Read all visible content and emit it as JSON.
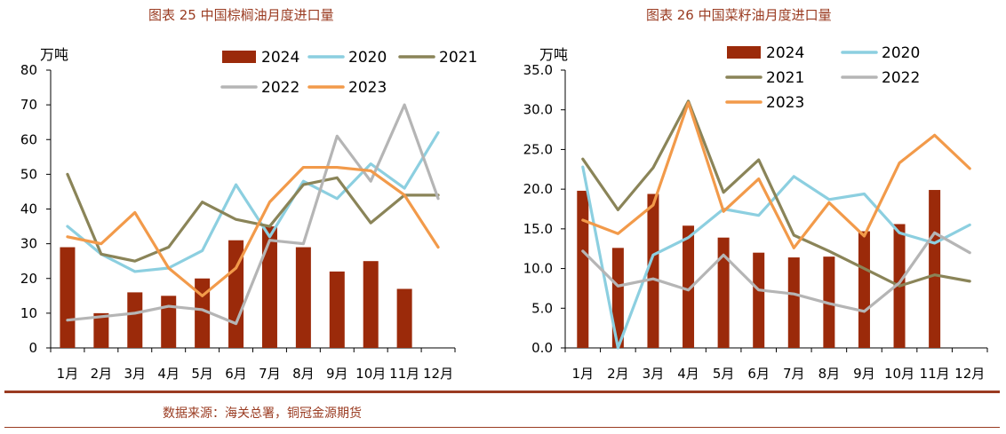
{
  "colors": {
    "2024": "#9b2a0a",
    "2020": "#8ccfe0",
    "2021": "#8a8458",
    "2022": "#b5b5b5",
    "2023": "#f29a4a",
    "title": "#9a3b21"
  },
  "source": "数据来源：海关总署，铜冠金源期货",
  "chart_data": [
    {
      "type": "bar+line",
      "title": "图表 25  中国棕榈油月度进口量",
      "unit": "万吨",
      "categories": [
        "1月",
        "2月",
        "3月",
        "4月",
        "5月",
        "6月",
        "7月",
        "8月",
        "9月",
        "10月",
        "11月",
        "12月"
      ],
      "ylim": [
        0,
        80
      ],
      "yticks": [
        "0",
        "10",
        "20",
        "30",
        "40",
        "50",
        "60",
        "70",
        "80"
      ],
      "legend_rows": [
        [
          "2024",
          "2020",
          "2021"
        ],
        [
          "2022",
          "2023"
        ]
      ],
      "bars": {
        "name": "2024",
        "values": [
          29,
          10,
          16,
          15,
          20,
          31,
          35,
          29,
          22,
          25,
          17,
          null
        ]
      },
      "series": [
        {
          "name": "2020",
          "values": [
            35,
            27,
            22,
            23,
            28,
            47,
            32,
            48,
            43,
            53,
            46,
            62
          ]
        },
        {
          "name": "2021",
          "values": [
            50,
            27,
            25,
            29,
            42,
            37,
            35,
            47,
            49,
            36,
            44,
            44
          ]
        },
        {
          "name": "2022",
          "values": [
            8,
            9,
            10,
            12,
            11,
            7,
            31,
            30,
            61,
            48,
            70,
            43
          ]
        },
        {
          "name": "2023",
          "values": [
            32,
            30,
            39,
            23,
            15,
            23,
            42,
            52,
            52,
            51,
            44,
            29
          ]
        }
      ]
    },
    {
      "type": "bar+line",
      "title": "图表 26  中国菜籽油月度进口量",
      "unit": "万吨",
      "categories": [
        "1月",
        "2月",
        "3月",
        "4月",
        "5月",
        "6月",
        "7月",
        "8月",
        "9月",
        "10月",
        "11月",
        "12月"
      ],
      "ylim": [
        0,
        35
      ],
      "yticks": [
        "0.0",
        "5.0",
        "10.0",
        "15.0",
        "20.0",
        "25.0",
        "30.0",
        "35.0"
      ],
      "legend_rows": [
        [
          "2024",
          "2020"
        ],
        [
          "2021",
          "2022"
        ],
        [
          "2023"
        ]
      ],
      "bars": {
        "name": "2024",
        "values": [
          19.8,
          12.6,
          19.4,
          15.4,
          13.9,
          12.0,
          11.4,
          11.5,
          14.7,
          15.6,
          19.9,
          null
        ]
      },
      "series": [
        {
          "name": "2020",
          "values": [
            22.8,
            0.0,
            11.7,
            13.9,
            17.5,
            16.7,
            21.6,
            18.7,
            19.4,
            14.5,
            13.2,
            15.5
          ]
        },
        {
          "name": "2021",
          "values": [
            23.8,
            17.4,
            22.7,
            31.1,
            19.6,
            23.7,
            14.2,
            12.2,
            10.0,
            7.8,
            9.2,
            8.4
          ]
        },
        {
          "name": "2022",
          "values": [
            12.2,
            7.8,
            8.7,
            7.3,
            11.7,
            7.3,
            6.8,
            5.6,
            4.6,
            8.2,
            14.5,
            12.0
          ]
        },
        {
          "name": "2023",
          "values": [
            16.1,
            14.4,
            18.0,
            30.9,
            17.2,
            21.3,
            12.6,
            18.3,
            14.1,
            23.3,
            26.8,
            22.6
          ]
        }
      ]
    }
  ]
}
